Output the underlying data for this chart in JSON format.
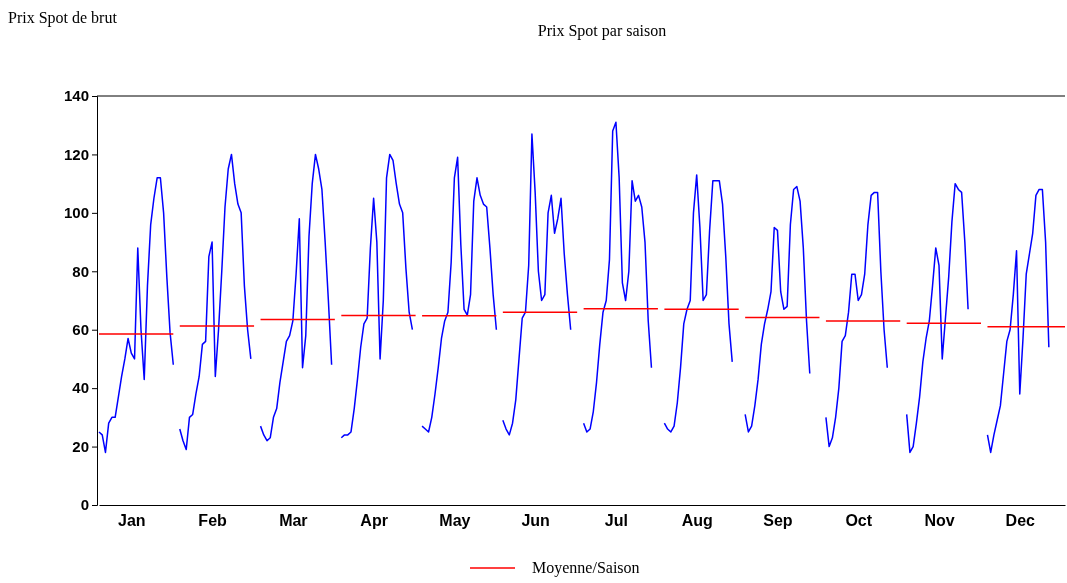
{
  "chart_data": {
    "type": "line",
    "title": "Prix Spot par saison",
    "ylabel": "Prix Spot de brut",
    "categories": [
      null,
      null,
      null,
      null,
      null,
      null,
      null,
      null,
      null,
      null,
      "Jan",
      null,
      null,
      null,
      null,
      null,
      null,
      null,
      null,
      null,
      null,
      null,
      null,
      null,
      null,
      null,
      null,
      null,
      null,
      null,
      null,
      null,
      null,
      null,
      null,
      "Feb",
      null,
      null,
      null,
      null,
      null,
      null,
      null,
      null,
      null,
      null,
      null,
      null,
      null,
      null,
      null,
      null,
      null,
      null,
      null,
      null,
      null,
      null,
      null,
      null,
      "Mar",
      null,
      null,
      null,
      null,
      null,
      null,
      null,
      null,
      null,
      null,
      null,
      null,
      null,
      null,
      null,
      null,
      null,
      null,
      null,
      null,
      null,
      null,
      null,
      null,
      "Apr",
      null,
      null,
      null,
      null,
      null,
      null,
      null,
      null,
      null,
      null,
      null,
      null,
      null,
      null,
      null,
      null,
      null,
      null,
      null,
      null,
      null,
      null,
      null,
      null,
      "May",
      null,
      null,
      null,
      null,
      null,
      null,
      null,
      null,
      null,
      null,
      null,
      null,
      null,
      null,
      null,
      null,
      null,
      null,
      null,
      null,
      null,
      null,
      null,
      null,
      "Jun",
      null,
      null,
      null,
      null,
      null,
      null,
      null,
      null,
      null,
      null,
      null,
      null,
      null,
      null,
      null,
      null,
      null,
      null,
      null,
      null,
      null,
      null,
      null,
      null,
      "Jul",
      null,
      null,
      null,
      null,
      null,
      null,
      null,
      null,
      null,
      null,
      null,
      null,
      null,
      null,
      null,
      null,
      null,
      null,
      null,
      null,
      null,
      null,
      null,
      null,
      "Aug",
      null,
      null,
      null,
      null,
      null,
      null,
      null,
      null,
      null,
      null,
      null,
      null,
      null,
      null,
      null,
      null,
      null,
      null,
      null,
      null,
      null,
      null,
      null,
      null,
      "Sep",
      null,
      null,
      null,
      null,
      null,
      null,
      null,
      null,
      null,
      null,
      null,
      null,
      null,
      null,
      null,
      null,
      null,
      null,
      null,
      null,
      null,
      null,
      null,
      null,
      "Oct",
      null,
      null,
      null,
      null,
      null,
      null,
      null,
      null,
      null,
      null,
      null,
      null,
      null,
      null,
      null,
      null,
      null,
      null,
      null,
      null,
      null,
      null,
      null,
      null,
      "Nov",
      null,
      null,
      null,
      null,
      null,
      null,
      null,
      null,
      null,
      null,
      null,
      null,
      null,
      null,
      null,
      null,
      null,
      null,
      null,
      null,
      null,
      null,
      null,
      null,
      "Dec",
      null,
      null,
      null,
      null,
      null,
      null,
      null,
      null,
      null,
      null,
      null,
      null,
      null,
      null
    ],
    "ylim": [
      0,
      140
    ],
    "yticks": [
      0,
      20,
      40,
      60,
      80,
      100,
      120,
      140
    ],
    "legend": "bottom",
    "line_style": "solid",
    "series": [
      {
        "color": "#0000ff",
        "values": [
          25,
          24,
          18,
          28,
          30,
          30,
          37,
          44,
          50,
          57,
          52,
          50,
          88,
          60,
          43,
          75,
          96,
          105,
          112,
          112,
          100,
          78,
          59,
          48,
          null,
          26,
          22,
          19,
          30,
          31,
          38,
          44,
          55,
          56,
          85,
          90,
          44,
          60,
          80,
          102,
          115,
          120,
          110,
          103,
          100,
          75,
          60,
          50,
          null,
          null,
          27,
          24,
          22,
          23,
          30,
          33,
          42,
          49,
          56,
          58,
          63,
          79,
          98,
          47,
          58,
          92,
          110,
          120,
          115,
          108,
          90,
          70,
          48,
          null,
          null,
          23,
          24,
          24,
          25,
          33,
          43,
          54,
          62,
          64,
          88,
          105,
          90,
          50,
          70,
          112,
          120,
          118,
          110,
          103,
          100,
          81,
          66,
          60,
          null,
          null,
          27,
          26,
          25,
          30,
          38,
          47,
          57,
          63,
          66,
          83,
          112,
          119,
          89,
          67,
          65,
          72,
          104,
          112,
          106,
          103,
          102,
          88,
          72,
          60,
          null,
          29,
          26,
          24,
          28,
          36,
          50,
          64,
          66,
          82,
          127,
          107,
          80,
          70,
          72,
          100,
          106,
          93,
          98,
          105,
          86,
          72,
          60,
          null,
          null,
          null,
          28,
          25,
          26,
          32,
          42,
          55,
          66,
          70,
          84,
          128,
          131,
          112,
          76,
          70,
          80,
          111,
          104,
          106,
          102,
          90,
          63,
          47,
          null,
          null,
          null,
          28,
          26,
          25,
          27,
          35,
          47,
          62,
          67,
          70,
          100,
          113,
          95,
          70,
          72,
          94,
          111,
          111,
          111,
          103,
          85,
          62,
          49,
          null,
          null,
          null,
          31,
          25,
          27,
          34,
          43,
          55,
          62,
          67,
          73,
          95,
          94,
          73,
          67,
          68,
          96,
          108,
          109,
          104,
          88,
          63,
          45,
          null,
          null,
          null,
          null,
          30,
          20,
          23,
          30,
          40,
          56,
          58,
          66,
          79,
          79,
          70,
          72,
          79,
          96,
          106,
          107,
          107,
          80,
          60,
          47,
          null,
          null,
          null,
          null,
          null,
          31,
          18,
          20,
          28,
          37,
          49,
          57,
          63,
          75,
          88,
          82,
          50,
          64,
          78,
          97,
          110,
          108,
          107,
          90,
          67,
          null,
          null,
          null,
          null,
          null,
          24,
          18,
          24,
          29,
          34,
          45,
          56,
          60,
          72,
          87,
          38,
          57,
          79,
          86,
          93,
          106,
          108,
          108,
          90,
          54,
          null,
          null,
          null,
          null,
          null
        ]
      },
      {
        "name": "Moyenne/Saison",
        "color": "#ff0000",
        "values": [
          58.5,
          58.5,
          58.5,
          58.5,
          58.5,
          58.5,
          58.5,
          58.5,
          58.5,
          58.5,
          58.5,
          58.5,
          58.5,
          58.5,
          58.5,
          58.5,
          58.5,
          58.5,
          58.5,
          58.5,
          58.5,
          58.5,
          58.5,
          58.5,
          null,
          61.3,
          61.3,
          61.3,
          61.3,
          61.3,
          61.3,
          61.3,
          61.3,
          61.3,
          61.3,
          61.3,
          61.3,
          61.3,
          61.3,
          61.3,
          61.3,
          61.3,
          61.3,
          61.3,
          61.3,
          61.3,
          61.3,
          61.3,
          61.3,
          null,
          63.5,
          63.5,
          63.5,
          63.5,
          63.5,
          63.5,
          63.5,
          63.5,
          63.5,
          63.5,
          63.5,
          63.5,
          63.5,
          63.5,
          63.5,
          63.5,
          63.5,
          63.5,
          63.5,
          63.5,
          63.5,
          63.5,
          63.5,
          63.5,
          null,
          64.9,
          64.9,
          64.9,
          64.9,
          64.9,
          64.9,
          64.9,
          64.9,
          64.9,
          64.9,
          64.9,
          64.9,
          64.9,
          64.9,
          64.9,
          64.9,
          64.9,
          64.9,
          64.9,
          64.9,
          64.9,
          64.9,
          64.9,
          64.9,
          null,
          64.8,
          64.8,
          64.8,
          64.8,
          64.8,
          64.8,
          64.8,
          64.8,
          64.8,
          64.8,
          64.8,
          64.8,
          64.8,
          64.8,
          64.8,
          64.8,
          64.8,
          64.8,
          64.8,
          64.8,
          64.8,
          64.8,
          64.8,
          64.8,
          null,
          66,
          66,
          66,
          66,
          66,
          66,
          66,
          66,
          66,
          66,
          66,
          66,
          66,
          66,
          66,
          66,
          66,
          66,
          66,
          66,
          66,
          66,
          66,
          66,
          null,
          67.2,
          67.2,
          67.2,
          67.2,
          67.2,
          67.2,
          67.2,
          67.2,
          67.2,
          67.2,
          67.2,
          67.2,
          67.2,
          67.2,
          67.2,
          67.2,
          67.2,
          67.2,
          67.2,
          67.2,
          67.2,
          67.2,
          67.2,
          67.2,
          null,
          67,
          67,
          67,
          67,
          67,
          67,
          67,
          67,
          67,
          67,
          67,
          67,
          67,
          67,
          67,
          67,
          67,
          67,
          67,
          67,
          67,
          67,
          67,
          67,
          null,
          64.2,
          64.2,
          64.2,
          64.2,
          64.2,
          64.2,
          64.2,
          64.2,
          64.2,
          64.2,
          64.2,
          64.2,
          64.2,
          64.2,
          64.2,
          64.2,
          64.2,
          64.2,
          64.2,
          64.2,
          64.2,
          64.2,
          64.2,
          64.2,
          null,
          63,
          63,
          63,
          63,
          63,
          63,
          63,
          63,
          63,
          63,
          63,
          63,
          63,
          63,
          63,
          63,
          63,
          63,
          63,
          63,
          63,
          63,
          63,
          63,
          null,
          62.2,
          62.2,
          62.2,
          62.2,
          62.2,
          62.2,
          62.2,
          62.2,
          62.2,
          62.2,
          62.2,
          62.2,
          62.2,
          62.2,
          62.2,
          62.2,
          62.2,
          62.2,
          62.2,
          62.2,
          62.2,
          62.2,
          62.2,
          62.2,
          null,
          61,
          61,
          61,
          61,
          61,
          61,
          61,
          61,
          61,
          61,
          61,
          61,
          61,
          61,
          61,
          61,
          61,
          61,
          61,
          61,
          61,
          61,
          61,
          61,
          61
        ]
      }
    ]
  }
}
